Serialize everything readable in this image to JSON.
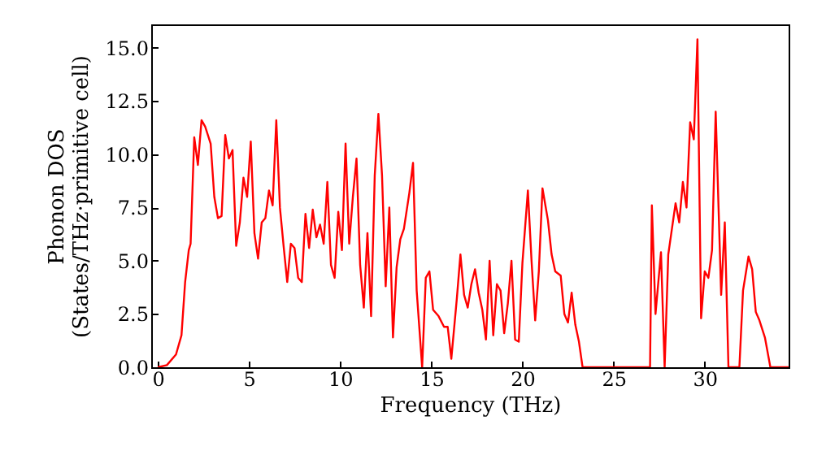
{
  "chart_data": {
    "type": "line",
    "xlabel": "Frequency (THz)",
    "ylabel": "Phonon DOS\n(States/THz·primitive cell)",
    "xlim": [
      -0.36,
      34.6
    ],
    "xticks": [
      0,
      5,
      10,
      15,
      20,
      25,
      30
    ],
    "ylim": [
      0,
      16.1
    ],
    "yticks": [
      {
        "value": 0,
        "label": "0.0"
      },
      {
        "value": 2.5,
        "label": "2.5"
      },
      {
        "value": 5,
        "label": "5.0"
      },
      {
        "value": 7.5,
        "label": "7.5"
      },
      {
        "value": 10,
        "label": "10.0"
      },
      {
        "value": 12.5,
        "label": "12.5"
      },
      {
        "value": 15,
        "label": "15.0"
      }
    ],
    "x": [
      0,
      0.5,
      1.0,
      1.3,
      1.5,
      1.7,
      1.8,
      2.0,
      2.2,
      2.4,
      2.6,
      2.9,
      3.1,
      3.3,
      3.5,
      3.7,
      3.9,
      4.1,
      4.3,
      4.5,
      4.7,
      4.9,
      5.1,
      5.3,
      5.5,
      5.7,
      5.9,
      6.1,
      6.3,
      6.5,
      6.7,
      6.9,
      7.1,
      7.3,
      7.5,
      7.7,
      7.9,
      8.1,
      8.3,
      8.5,
      8.7,
      8.9,
      9.1,
      9.3,
      9.5,
      9.7,
      9.9,
      10.1,
      10.3,
      10.5,
      10.7,
      10.9,
      11.1,
      11.3,
      11.5,
      11.7,
      11.9,
      12.1,
      12.3,
      12.5,
      12.7,
      12.9,
      13.1,
      13.3,
      13.5,
      13.8,
      14.0,
      14.2,
      14.5,
      14.7,
      14.9,
      15.1,
      15.4,
      15.7,
      15.9,
      16.1,
      16.4,
      16.6,
      16.8,
      17.0,
      17.2,
      17.4,
      17.6,
      17.8,
      18.0,
      18.2,
      18.4,
      18.6,
      18.8,
      19.0,
      19.2,
      19.4,
      19.6,
      19.8,
      20.0,
      20.3,
      20.5,
      20.7,
      20.9,
      21.1,
      21.4,
      21.6,
      21.8,
      22.1,
      22.3,
      22.5,
      22.7,
      22.9,
      23.1,
      23.3,
      27.0,
      27.1,
      27.3,
      27.6,
      27.8,
      28.0,
      28.2,
      28.4,
      28.6,
      28.8,
      29.0,
      29.2,
      29.4,
      29.6,
      29.8,
      30.0,
      30.2,
      30.4,
      30.6,
      30.9,
      31.1,
      31.3,
      31.9,
      32.1,
      32.4,
      32.6,
      32.8,
      33.0,
      33.3,
      33.6,
      34.6
    ],
    "series": [
      {
        "color": "#ff0000",
        "values": [
          0,
          0.1,
          0.6,
          1.5,
          4.0,
          5.5,
          5.8,
          10.8,
          9.5,
          11.6,
          11.3,
          10.5,
          8.0,
          7.0,
          7.1,
          10.9,
          9.8,
          10.2,
          5.7,
          6.8,
          8.9,
          8.0,
          10.6,
          6.3,
          5.1,
          6.8,
          7.0,
          8.3,
          7.6,
          11.6,
          7.5,
          5.7,
          4.0,
          5.8,
          5.6,
          4.2,
          4.0,
          7.2,
          5.6,
          7.4,
          6.1,
          6.7,
          5.8,
          8.7,
          4.8,
          4.2,
          7.3,
          5.5,
          10.5,
          5.8,
          8.0,
          9.8,
          4.8,
          2.8,
          6.3,
          2.4,
          9.0,
          11.9,
          9.0,
          3.8,
          7.5,
          1.4,
          4.7,
          6.0,
          6.5,
          8.2,
          9.6,
          3.6,
          0,
          4.2,
          4.5,
          2.7,
          2.4,
          1.9,
          1.9,
          0.4,
          3.2,
          5.3,
          3.4,
          2.8,
          3.9,
          4.6,
          3.5,
          2.7,
          1.3,
          5.0,
          1.5,
          3.9,
          3.6,
          1.6,
          3.0,
          5.0,
          1.3,
          1.2,
          4.9,
          8.3,
          5.0,
          2.2,
          4.5,
          8.4,
          6.9,
          5.3,
          4.5,
          4.3,
          2.5,
          2.1,
          3.5,
          2.0,
          1.2,
          0,
          0,
          7.6,
          2.5,
          5.4,
          0,
          5.3,
          6.5,
          7.7,
          6.8,
          8.7,
          7.5,
          11.5,
          10.7,
          15.4,
          2.3,
          4.5,
          4.2,
          5.5,
          12.0,
          3.4,
          6.8,
          0,
          0,
          3.6,
          5.2,
          4.6,
          2.6,
          2.2,
          1.4,
          0,
          0
        ]
      }
    ]
  }
}
